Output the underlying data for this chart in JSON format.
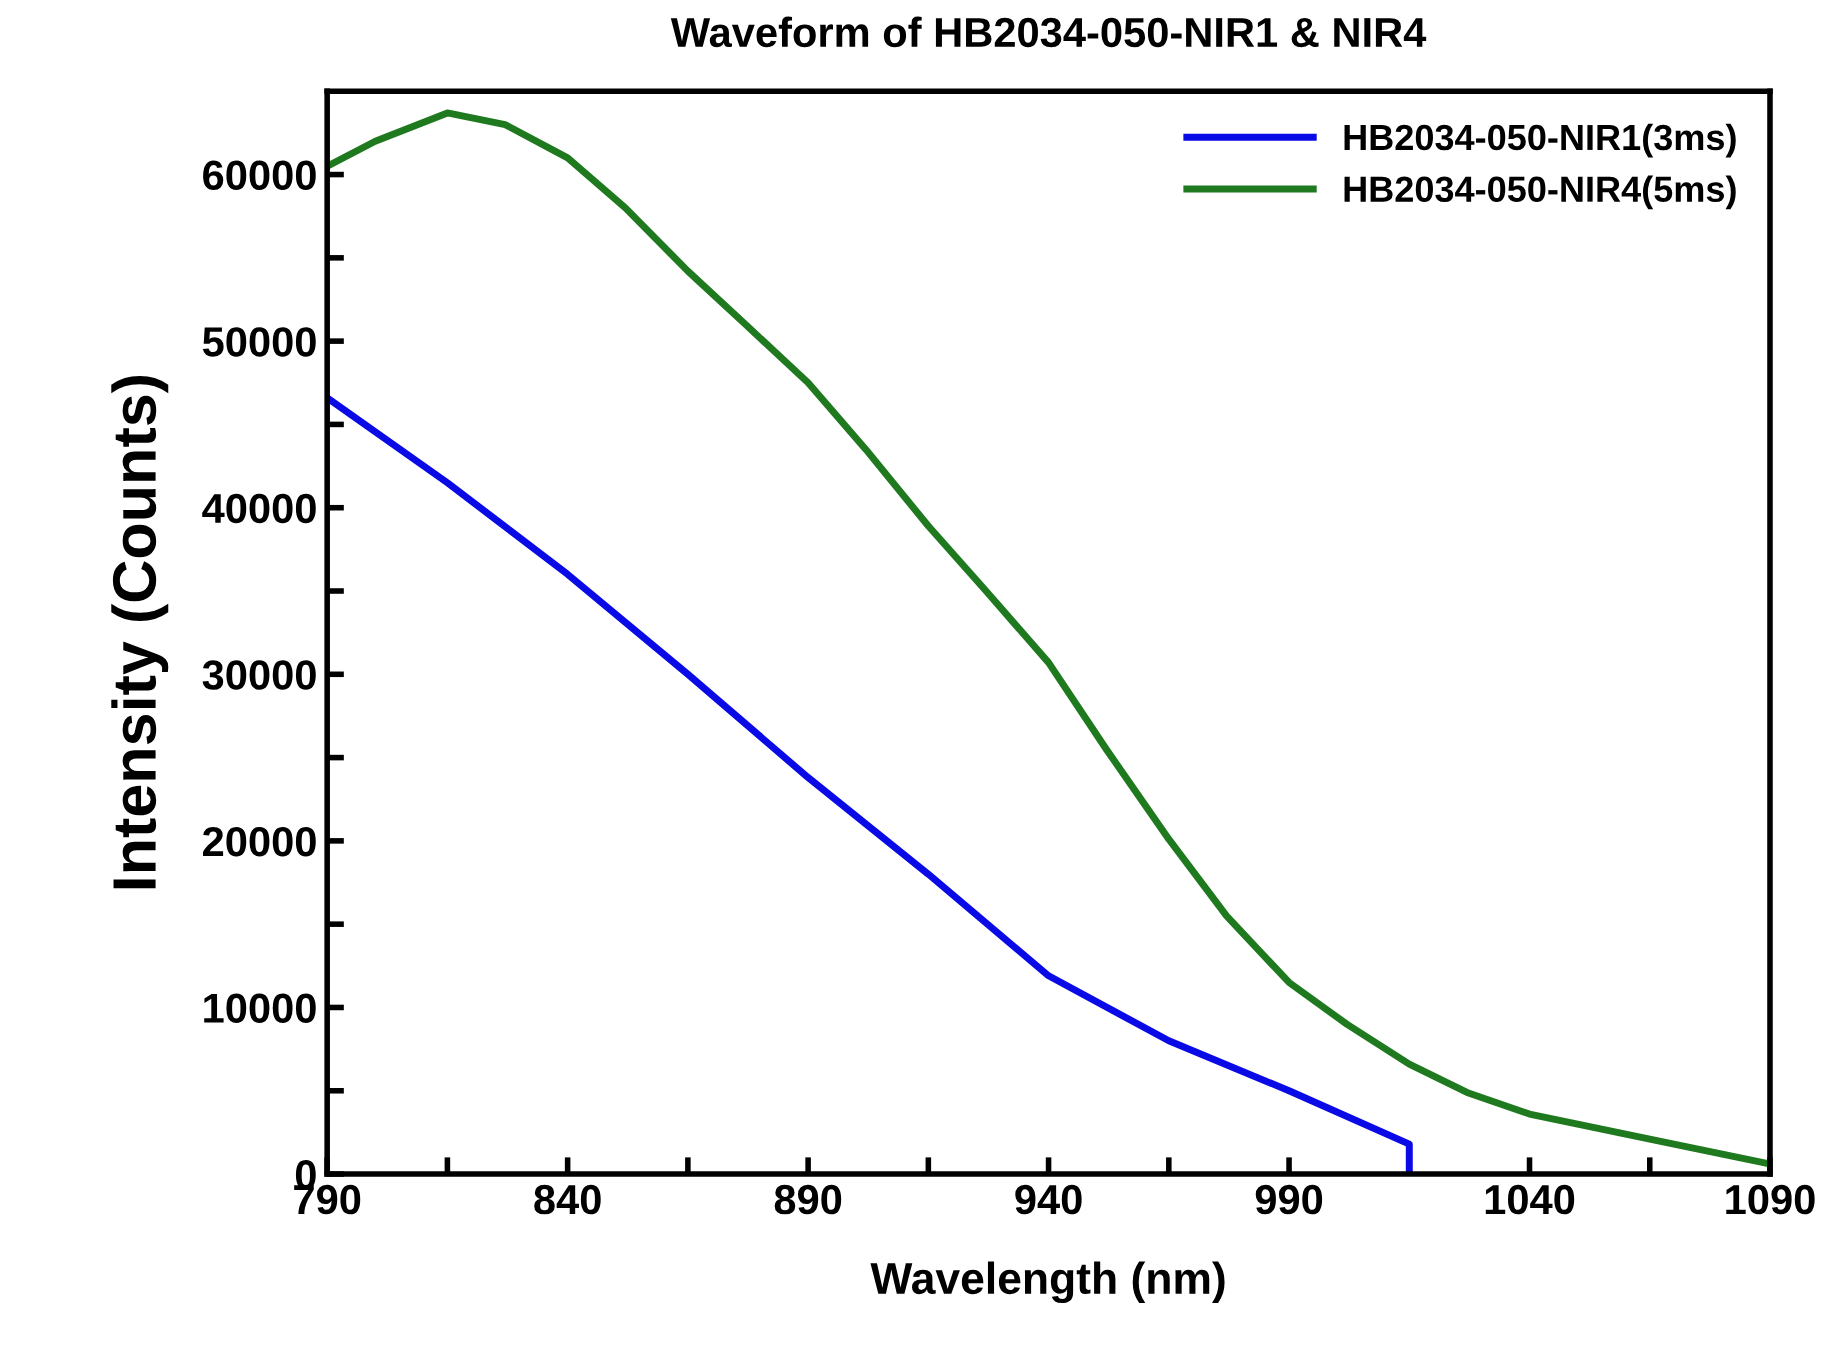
{
  "chart_data": {
    "type": "line",
    "title": "Waveform of HB2034-050-NIR1 & NIR4",
    "xlabel": "Wavelength (nm)",
    "ylabel": "Intensity (Counts)",
    "xlim": [
      790,
      1090
    ],
    "ylim": [
      0,
      65000
    ],
    "xticks": [
      790,
      {
        "value": 815,
        "label": null
      },
      840,
      {
        "value": 865,
        "label": null
      },
      890,
      {
        "value": 915,
        "label": null
      },
      940,
      {
        "value": 965,
        "label": null
      },
      990,
      {
        "value": 1015,
        "label": null
      },
      1040,
      {
        "value": 1065,
        "label": null
      },
      1090
    ],
    "yticks": [
      0,
      {
        "value": 5000,
        "label": null
      },
      10000,
      {
        "value": 15000,
        "label": null
      },
      20000,
      {
        "value": 25000,
        "label": null
      },
      30000,
      {
        "value": 35000,
        "label": null
      },
      40000,
      {
        "value": 45000,
        "label": null
      },
      50000,
      {
        "value": 55000,
        "label": null
      },
      60000
    ],
    "grid": false,
    "legend": "top right",
    "marker": "none",
    "line_style": "solid",
    "series": [
      {
        "name": "HB2034-050-NIR1(3ms)",
        "color": "#0a0ae6",
        "x": [
          790,
          815,
          840,
          865,
          890,
          915,
          940,
          965,
          990,
          1015,
          1015
        ],
        "values": [
          46600,
          41500,
          36000,
          30000,
          23800,
          18000,
          11900,
          8000,
          5000,
          1800,
          0
        ]
      },
      {
        "name": "HB2034-050-NIR4(5ms)",
        "color": "#1f7a1f",
        "x": [
          790,
          800,
          815,
          827,
          840,
          852,
          865,
          877,
          890,
          902,
          915,
          927,
          940,
          952,
          965,
          977,
          990,
          1002,
          1015,
          1027,
          1040,
          1065,
          1090
        ],
        "values": [
          60500,
          62000,
          63700,
          63000,
          61000,
          58000,
          54200,
          51000,
          47500,
          43500,
          38900,
          35000,
          30700,
          25500,
          20100,
          15500,
          11500,
          9000,
          6600,
          4900,
          3600,
          2100,
          600
        ]
      }
    ]
  }
}
